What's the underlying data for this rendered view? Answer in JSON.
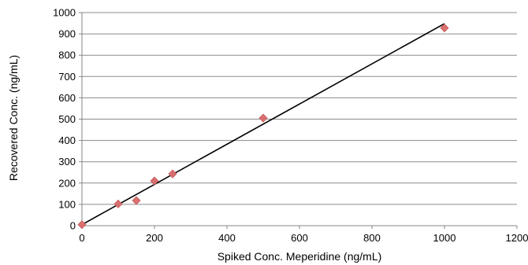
{
  "chart_data": {
    "type": "scatter",
    "xlabel": "Spiked Conc. Meperidine (ng/mL)",
    "ylabel": "Recovered Conc. (ng/mL)",
    "xlim": [
      0,
      1200
    ],
    "ylim": [
      0,
      1000
    ],
    "xticks": [
      0,
      200,
      400,
      600,
      800,
      1000,
      1200
    ],
    "yticks": [
      0,
      100,
      200,
      300,
      400,
      500,
      600,
      700,
      800,
      900,
      1000
    ],
    "grid": {
      "horizontal": true,
      "vertical": false
    },
    "legend": "none",
    "series": [
      {
        "marker": "diamond",
        "color": "#d9706f",
        "points": [
          {
            "x": 0,
            "y": 5
          },
          {
            "x": 100,
            "y": 102
          },
          {
            "x": 150,
            "y": 118
          },
          {
            "x": 200,
            "y": 210
          },
          {
            "x": 250,
            "y": 243
          },
          {
            "x": 500,
            "y": 505
          },
          {
            "x": 1000,
            "y": 928
          }
        ]
      }
    ],
    "trendline": {
      "type": "linear",
      "color": "#000000",
      "from": {
        "x": 0,
        "y": 5
      },
      "to": {
        "x": 1000,
        "y": 948
      }
    }
  }
}
